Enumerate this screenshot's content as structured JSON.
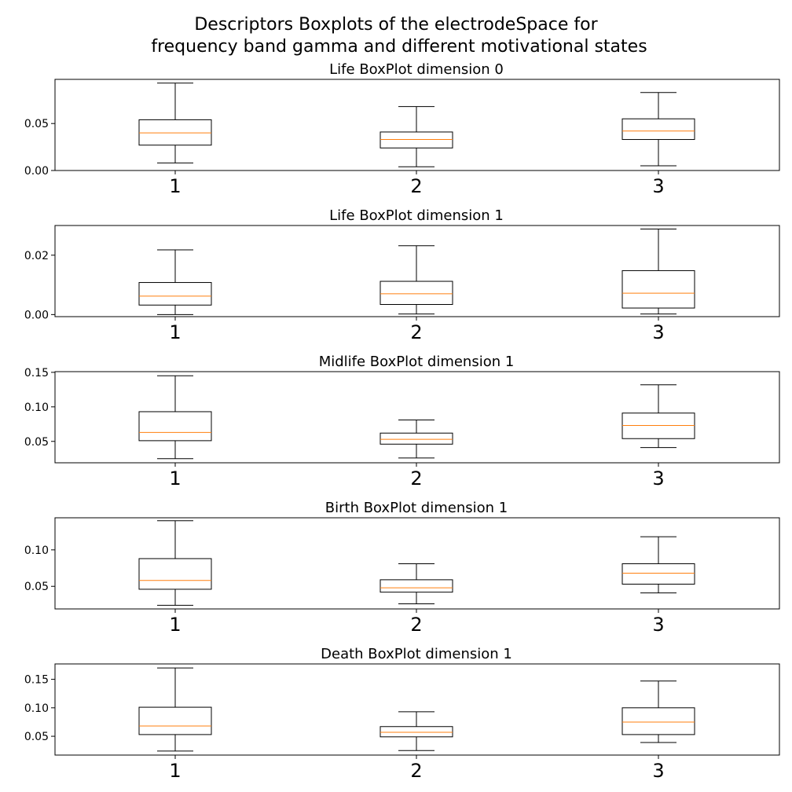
{
  "figure": {
    "suptitle": [
      "Descriptors Boxplots of the electrodeSpace for",
      "frequency band gamma and different motivational states"
    ]
  },
  "colors": {
    "box": "#000000",
    "median": "#ff7f0e",
    "background": "#ffffff"
  },
  "chart_data": [
    {
      "type": "box",
      "title": "Life BoxPlot dimension 0",
      "categories": [
        "1",
        "2",
        "3"
      ],
      "ylim": [
        0.0,
        0.097
      ],
      "yticks": [
        0.0,
        0.05
      ],
      "ytick_labels": [
        "0.00",
        "0.05"
      ],
      "boxes": [
        {
          "whislo": 0.008,
          "q1": 0.027,
          "med": 0.04,
          "q3": 0.054,
          "whishi": 0.093
        },
        {
          "whislo": 0.004,
          "q1": 0.024,
          "med": 0.033,
          "q3": 0.041,
          "whishi": 0.068
        },
        {
          "whislo": 0.005,
          "q1": 0.033,
          "med": 0.042,
          "q3": 0.055,
          "whishi": 0.083
        }
      ]
    },
    {
      "type": "box",
      "title": "Life BoxPlot dimension 1",
      "categories": [
        "1",
        "2",
        "3"
      ],
      "ylim": [
        -0.0007,
        0.03
      ],
      "yticks": [
        0.0,
        0.02
      ],
      "ytick_labels": [
        "0.00",
        "0.02"
      ],
      "boxes": [
        {
          "whislo": 0.0,
          "q1": 0.0032,
          "med": 0.0062,
          "q3": 0.0108,
          "whishi": 0.0218
        },
        {
          "whislo": 0.0002,
          "q1": 0.0034,
          "med": 0.007,
          "q3": 0.0112,
          "whishi": 0.0232
        },
        {
          "whislo": 0.0002,
          "q1": 0.0022,
          "med": 0.0072,
          "q3": 0.0148,
          "whishi": 0.0288
        }
      ]
    },
    {
      "type": "box",
      "title": "Midlife BoxPlot dimension 1",
      "categories": [
        "1",
        "2",
        "3"
      ],
      "ylim": [
        0.019,
        0.151
      ],
      "yticks": [
        0.05,
        0.1,
        0.15
      ],
      "ytick_labels": [
        "0.05",
        "0.10",
        "0.15"
      ],
      "boxes": [
        {
          "whislo": 0.025,
          "q1": 0.051,
          "med": 0.063,
          "q3": 0.093,
          "whishi": 0.145
        },
        {
          "whislo": 0.026,
          "q1": 0.046,
          "med": 0.053,
          "q3": 0.062,
          "whishi": 0.081
        },
        {
          "whislo": 0.041,
          "q1": 0.054,
          "med": 0.073,
          "q3": 0.091,
          "whishi": 0.132
        }
      ]
    },
    {
      "type": "box",
      "title": "Birth BoxPlot dimension 1",
      "categories": [
        "1",
        "2",
        "3"
      ],
      "ylim": [
        0.019,
        0.144
      ],
      "yticks": [
        0.05,
        0.1
      ],
      "ytick_labels": [
        "0.05",
        "0.10"
      ],
      "boxes": [
        {
          "whislo": 0.024,
          "q1": 0.046,
          "med": 0.058,
          "q3": 0.088,
          "whishi": 0.14
        },
        {
          "whislo": 0.026,
          "q1": 0.042,
          "med": 0.048,
          "q3": 0.059,
          "whishi": 0.081
        },
        {
          "whislo": 0.041,
          "q1": 0.053,
          "med": 0.068,
          "q3": 0.081,
          "whishi": 0.118
        }
      ]
    },
    {
      "type": "box",
      "title": "Death BoxPlot dimension 1",
      "categories": [
        "1",
        "2",
        "3"
      ],
      "ylim": [
        0.017,
        0.177
      ],
      "yticks": [
        0.05,
        0.1,
        0.15
      ],
      "ytick_labels": [
        "0.05",
        "0.10",
        "0.15"
      ],
      "boxes": [
        {
          "whislo": 0.024,
          "q1": 0.053,
          "med": 0.068,
          "q3": 0.101,
          "whishi": 0.17
        },
        {
          "whislo": 0.025,
          "q1": 0.049,
          "med": 0.057,
          "q3": 0.067,
          "whishi": 0.093
        },
        {
          "whislo": 0.039,
          "q1": 0.053,
          "med": 0.075,
          "q3": 0.1,
          "whishi": 0.147
        }
      ]
    }
  ]
}
